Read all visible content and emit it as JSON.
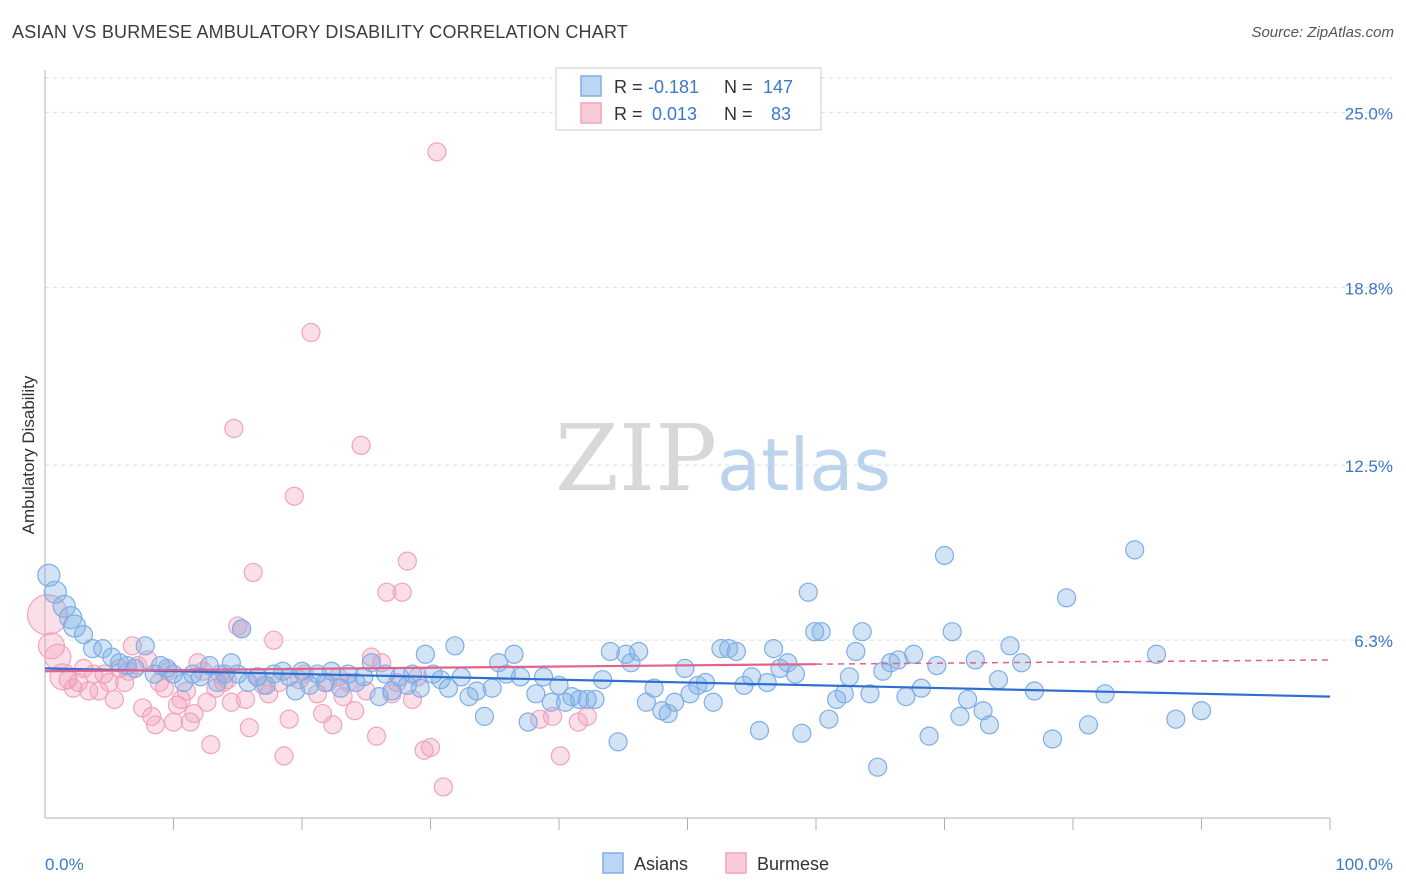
{
  "title": "ASIAN VS BURMESE AMBULATORY DISABILITY CORRELATION CHART",
  "source": "Source: ZipAtlas.com",
  "watermark": {
    "zip": "ZIP",
    "atlas": "atlas"
  },
  "colors": {
    "asians": "#7eaee6",
    "asians_line": "#2f6fd0",
    "burmese": "#f2a3bc",
    "burmese_line": "#e0628d",
    "axis_text": "#3a78c8"
  },
  "legend_stats": [
    {
      "series": "Asians",
      "r_label": "R =",
      "r_value": "-0.181",
      "n_label": "N =",
      "n_value": "147"
    },
    {
      "series": "Burmese",
      "r_label": "R =",
      "r_value": "0.013",
      "n_label": "N =",
      "n_value": "83"
    }
  ],
  "chart_data": {
    "type": "scatter",
    "title": "ASIAN VS BURMESE AMBULATORY DISABILITY CORRELATION CHART",
    "xlabel": "",
    "ylabel": "Ambulatory Disability",
    "xlim": [
      0,
      100
    ],
    "ylim": [
      0,
      26.5
    ],
    "x_tick_labels": [
      "0.0%",
      "100.0%"
    ],
    "y_tick_labels": [
      "25.0%",
      "18.8%",
      "12.5%",
      "6.3%"
    ],
    "y_ticks": [
      25.0,
      18.8,
      12.5,
      6.3
    ],
    "grid": "horizontal dashed",
    "legend_position": "bottom-center",
    "series": [
      {
        "name": "Asians",
        "r": -0.181,
        "n": 147,
        "trend": {
          "x": [
            0,
            100
          ],
          "y": [
            5.3,
            4.3
          ]
        },
        "points": [
          [
            0.3,
            8.6
          ],
          [
            0.8,
            8.0
          ],
          [
            1.5,
            7.5
          ],
          [
            2.0,
            7.1
          ],
          [
            2.3,
            6.8
          ],
          [
            3.0,
            6.5
          ],
          [
            3.7,
            6.0
          ],
          [
            4.5,
            6.0
          ],
          [
            5.2,
            5.7
          ],
          [
            5.8,
            5.5
          ],
          [
            6.4,
            5.4
          ],
          [
            7.0,
            5.3
          ],
          [
            7.8,
            6.1
          ],
          [
            8.5,
            5.1
          ],
          [
            9.0,
            5.4
          ],
          [
            9.5,
            5.3
          ],
          [
            10.0,
            5.1
          ],
          [
            10.8,
            4.8
          ],
          [
            11.5,
            5.1
          ],
          [
            12.1,
            5.0
          ],
          [
            12.8,
            5.4
          ],
          [
            13.4,
            4.8
          ],
          [
            14.0,
            5.1
          ],
          [
            14.5,
            5.5
          ],
          [
            15.0,
            5.1
          ],
          [
            15.3,
            6.7
          ],
          [
            15.8,
            4.8
          ],
          [
            16.5,
            5.0
          ],
          [
            17.2,
            4.7
          ],
          [
            17.8,
            5.1
          ],
          [
            18.5,
            5.2
          ],
          [
            19.0,
            5.0
          ],
          [
            19.5,
            4.5
          ],
          [
            20.0,
            5.2
          ],
          [
            20.6,
            4.7
          ],
          [
            21.2,
            5.1
          ],
          [
            21.8,
            4.8
          ],
          [
            22.3,
            5.2
          ],
          [
            23.0,
            4.6
          ],
          [
            23.6,
            5.1
          ],
          [
            24.2,
            4.8
          ],
          [
            24.8,
            5.0
          ],
          [
            25.4,
            5.5
          ],
          [
            26.0,
            4.3
          ],
          [
            26.5,
            5.1
          ],
          [
            27.0,
            4.5
          ],
          [
            27.6,
            5.0
          ],
          [
            28.2,
            4.7
          ],
          [
            28.6,
            5.1
          ],
          [
            29.2,
            4.6
          ],
          [
            29.6,
            5.8
          ],
          [
            30.2,
            5.1
          ],
          [
            30.8,
            4.9
          ],
          [
            31.4,
            4.6
          ],
          [
            31.9,
            6.1
          ],
          [
            32.4,
            5.0
          ],
          [
            33.0,
            4.3
          ],
          [
            33.6,
            4.5
          ],
          [
            34.2,
            3.6
          ],
          [
            34.8,
            4.6
          ],
          [
            35.3,
            5.5
          ],
          [
            35.9,
            5.1
          ],
          [
            36.5,
            5.8
          ],
          [
            37.0,
            5.0
          ],
          [
            37.6,
            3.4
          ],
          [
            38.2,
            4.4
          ],
          [
            38.8,
            5.0
          ],
          [
            39.4,
            4.1
          ],
          [
            40.0,
            4.7
          ],
          [
            40.5,
            4.1
          ],
          [
            41.0,
            4.3
          ],
          [
            41.6,
            4.2
          ],
          [
            42.2,
            4.2
          ],
          [
            42.8,
            4.2
          ],
          [
            43.4,
            4.9
          ],
          [
            44.0,
            5.9
          ],
          [
            44.6,
            2.7
          ],
          [
            45.2,
            5.8
          ],
          [
            45.6,
            5.5
          ],
          [
            46.2,
            5.9
          ],
          [
            46.8,
            4.1
          ],
          [
            47.4,
            4.6
          ],
          [
            48.0,
            3.8
          ],
          [
            48.5,
            3.7
          ],
          [
            49.0,
            4.1
          ],
          [
            49.8,
            5.3
          ],
          [
            50.2,
            4.4
          ],
          [
            50.8,
            4.7
          ],
          [
            51.4,
            4.8
          ],
          [
            52.0,
            4.1
          ],
          [
            52.6,
            6.0
          ],
          [
            53.2,
            6.0
          ],
          [
            53.8,
            5.9
          ],
          [
            54.4,
            4.7
          ],
          [
            55.0,
            5.0
          ],
          [
            55.6,
            3.1
          ],
          [
            56.2,
            4.8
          ],
          [
            56.7,
            6.0
          ],
          [
            57.2,
            5.3
          ],
          [
            57.8,
            5.5
          ],
          [
            58.4,
            5.1
          ],
          [
            58.9,
            3.0
          ],
          [
            59.4,
            8.0
          ],
          [
            59.9,
            6.6
          ],
          [
            60.4,
            6.6
          ],
          [
            61.0,
            3.5
          ],
          [
            61.6,
            4.2
          ],
          [
            62.2,
            4.4
          ],
          [
            62.6,
            5.0
          ],
          [
            63.1,
            5.9
          ],
          [
            63.6,
            6.6
          ],
          [
            64.2,
            4.4
          ],
          [
            64.8,
            1.8
          ],
          [
            65.2,
            5.2
          ],
          [
            65.8,
            5.5
          ],
          [
            66.4,
            5.6
          ],
          [
            67.0,
            4.3
          ],
          [
            67.6,
            5.8
          ],
          [
            68.2,
            4.6
          ],
          [
            68.8,
            2.9
          ],
          [
            69.4,
            5.4
          ],
          [
            70.0,
            9.3
          ],
          [
            70.6,
            6.6
          ],
          [
            71.2,
            3.6
          ],
          [
            71.8,
            4.2
          ],
          [
            72.4,
            5.6
          ],
          [
            73.0,
            3.8
          ],
          [
            73.5,
            3.3
          ],
          [
            74.2,
            4.9
          ],
          [
            75.1,
            6.1
          ],
          [
            76.0,
            5.5
          ],
          [
            77.0,
            4.5
          ],
          [
            78.4,
            2.8
          ],
          [
            79.5,
            7.8
          ],
          [
            81.2,
            3.3
          ],
          [
            82.5,
            4.4
          ],
          [
            84.8,
            9.5
          ],
          [
            86.5,
            5.8
          ],
          [
            88.0,
            3.5
          ],
          [
            90.0,
            3.8
          ]
        ]
      },
      {
        "name": "Burmese",
        "r": 0.013,
        "n": 83,
        "trend": {
          "x": [
            0,
            60
          ],
          "y": [
            5.2,
            5.45
          ]
        },
        "trend_dashed": {
          "x": [
            60,
            100
          ],
          "y": [
            5.45,
            5.6
          ]
        },
        "points": [
          [
            0.2,
            7.2
          ],
          [
            0.5,
            6.1
          ],
          [
            1.0,
            5.7
          ],
          [
            1.4,
            5.0
          ],
          [
            1.8,
            4.9
          ],
          [
            2.2,
            4.6
          ],
          [
            2.6,
            4.8
          ],
          [
            3.0,
            5.3
          ],
          [
            3.4,
            4.5
          ],
          [
            3.8,
            5.1
          ],
          [
            4.2,
            4.5
          ],
          [
            4.6,
            5.1
          ],
          [
            5.0,
            4.8
          ],
          [
            5.4,
            4.2
          ],
          [
            5.8,
            5.3
          ],
          [
            6.2,
            4.8
          ],
          [
            6.5,
            5.2
          ],
          [
            6.8,
            6.1
          ],
          [
            7.2,
            5.4
          ],
          [
            7.6,
            3.9
          ],
          [
            8.0,
            5.6
          ],
          [
            8.3,
            3.6
          ],
          [
            8.6,
            3.3
          ],
          [
            8.9,
            4.8
          ],
          [
            9.3,
            4.6
          ],
          [
            9.6,
            5.2
          ],
          [
            10.0,
            3.4
          ],
          [
            10.3,
            4.0
          ],
          [
            10.6,
            4.2
          ],
          [
            11.0,
            4.5
          ],
          [
            11.3,
            3.4
          ],
          [
            11.6,
            3.7
          ],
          [
            11.9,
            5.5
          ],
          [
            12.3,
            5.2
          ],
          [
            12.6,
            4.1
          ],
          [
            12.9,
            2.6
          ],
          [
            13.3,
            4.6
          ],
          [
            13.6,
            5.1
          ],
          [
            13.9,
            4.8
          ],
          [
            14.2,
            4.9
          ],
          [
            14.5,
            4.1
          ],
          [
            14.7,
            13.8
          ],
          [
            15.0,
            6.8
          ],
          [
            15.3,
            6.7
          ],
          [
            15.6,
            4.2
          ],
          [
            15.9,
            3.2
          ],
          [
            16.2,
            8.7
          ],
          [
            16.6,
            5.0
          ],
          [
            17.0,
            4.7
          ],
          [
            17.4,
            4.4
          ],
          [
            17.8,
            6.3
          ],
          [
            18.2,
            4.8
          ],
          [
            18.6,
            2.2
          ],
          [
            19.0,
            3.5
          ],
          [
            19.4,
            11.4
          ],
          [
            19.8,
            4.9
          ],
          [
            20.2,
            5.1
          ],
          [
            20.7,
            17.2
          ],
          [
            21.2,
            4.4
          ],
          [
            21.6,
            3.7
          ],
          [
            22.0,
            4.8
          ],
          [
            22.4,
            3.3
          ],
          [
            22.8,
            5.0
          ],
          [
            23.2,
            4.3
          ],
          [
            23.6,
            4.8
          ],
          [
            24.1,
            3.8
          ],
          [
            24.6,
            13.2
          ],
          [
            25.0,
            4.5
          ],
          [
            25.4,
            5.7
          ],
          [
            25.8,
            2.9
          ],
          [
            26.2,
            5.5
          ],
          [
            26.6,
            8.0
          ],
          [
            27.0,
            4.4
          ],
          [
            27.4,
            4.8
          ],
          [
            27.8,
            8.0
          ],
          [
            28.2,
            9.1
          ],
          [
            28.6,
            4.2
          ],
          [
            29.0,
            5.0
          ],
          [
            29.5,
            2.4
          ],
          [
            30.0,
            2.5
          ],
          [
            30.5,
            23.6
          ],
          [
            31.0,
            1.1
          ],
          [
            38.5,
            3.5
          ],
          [
            39.5,
            3.6
          ],
          [
            40.1,
            2.2
          ],
          [
            41.5,
            3.4
          ],
          [
            42.2,
            3.6
          ]
        ]
      }
    ]
  },
  "bottom_legend": [
    {
      "label": "Asians"
    },
    {
      "label": "Burmese"
    }
  ]
}
